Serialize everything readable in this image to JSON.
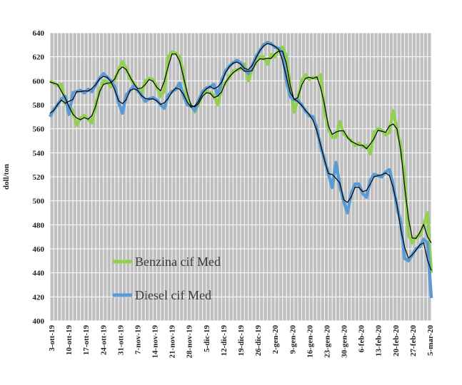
{
  "chart_data": {
    "type": "line",
    "title": "",
    "xlabel": "",
    "ylabel": "doll/ton",
    "ylim": [
      400,
      640
    ],
    "yticks": [
      400,
      420,
      440,
      460,
      480,
      500,
      520,
      540,
      560,
      580,
      600,
      620,
      640
    ],
    "grid": true,
    "background": "#bfbfbf",
    "legend_placement": "lower-left (inside plot)",
    "x_tick_labels": [
      "3-ott-19",
      "10-ott-19",
      "17-ott-19",
      "24-ott-19",
      "31-ott-19",
      "7-nov-19",
      "14-nov-19",
      "21-nov-19",
      "28-nov-19",
      "5-dic-19",
      "12-dic-19",
      "19-dic-19",
      "26-dic-19",
      "2-gen-20",
      "9-gen-20",
      "16-gen-20",
      "23-gen-20",
      "30-gen-20",
      "6-feb-20",
      "13-feb-20",
      "20-feb-20",
      "27-feb-20",
      "5-mar-20"
    ],
    "series": [
      {
        "name": "Benzina cif Med",
        "color": "#92d050",
        "smooth_color": "#000000",
        "values": [
          600,
          598,
          596,
          597,
          581,
          579,
          575,
          563,
          569,
          571,
          568,
          565,
          580,
          592,
          600,
          599,
          595,
          601,
          609,
          616,
          610,
          602,
          598,
          593,
          589,
          600,
          602,
          601,
          596,
          587,
          592,
          620,
          624,
          623,
          620,
          606,
          584,
          580,
          574,
          581,
          589,
          591,
          590,
          588,
          580,
          594,
          598,
          603,
          608,
          609,
          610,
          614,
          600,
          610,
          615,
          620,
          620,
          614,
          622,
          620,
          626,
          628,
          620,
          595,
          574,
          584,
          600,
          605,
          601,
          603,
          602,
          605,
          575,
          560,
          553,
          553,
          566,
          556,
          553,
          550,
          546,
          548,
          545,
          546,
          539,
          557,
          560,
          559,
          555,
          557,
          575,
          560,
          545,
          520,
          472,
          465,
          470,
          471,
          480,
          490,
          440
        ]
      },
      {
        "name": "Diesel cif Med",
        "color": "#5b9bd5",
        "smooth_color": "#000000",
        "values": [
          570,
          576,
          580,
          585,
          587,
          572,
          590,
          591,
          592,
          590,
          593,
          591,
          597,
          602,
          606,
          603,
          600,
          595,
          582,
          573,
          588,
          592,
          596,
          592,
          588,
          583,
          585,
          586,
          584,
          580,
          577,
          588,
          591,
          593,
          598,
          588,
          580,
          579,
          575,
          584,
          591,
          594,
          595,
          597,
          588,
          600,
          608,
          612,
          615,
          617,
          615,
          610,
          606,
          612,
          620,
          625,
          630,
          632,
          631,
          628,
          627,
          623,
          600,
          587,
          584,
          584,
          580,
          575,
          571,
          570,
          560,
          545,
          534,
          523,
          511,
          532,
          513,
          500,
          490,
          506,
          514,
          514,
          506,
          503,
          517,
          522,
          521,
          520,
          524,
          526,
          513,
          495,
          482,
          452,
          450,
          455,
          460,
          462,
          468,
          465,
          419
        ]
      }
    ]
  }
}
